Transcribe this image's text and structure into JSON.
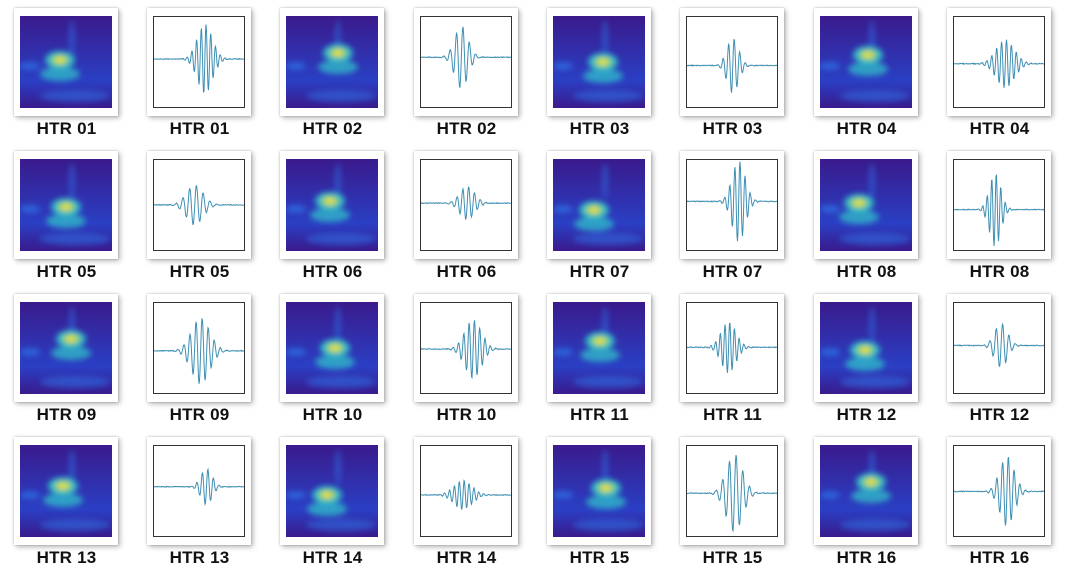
{
  "colors": {
    "background": "#ffffff",
    "waveform_line": "#3f8fb3",
    "plot_frame": "#333333",
    "scalogram_colormap": [
      "#3a1a8c",
      "#2a3fc4",
      "#2f7ff0",
      "#2fb8c8",
      "#8fd06a",
      "#f0e02a"
    ]
  },
  "panels": [
    {
      "label": "HTR 01",
      "kind": "scalogram",
      "sample": 1
    },
    {
      "label": "HTR 01",
      "kind": "waveform",
      "sample": 1
    },
    {
      "label": "HTR 02",
      "kind": "scalogram",
      "sample": 2
    },
    {
      "label": "HTR 02",
      "kind": "waveform",
      "sample": 2
    },
    {
      "label": "HTR 03",
      "kind": "scalogram",
      "sample": 3
    },
    {
      "label": "HTR 03",
      "kind": "waveform",
      "sample": 3
    },
    {
      "label": "HTR 04",
      "kind": "scalogram",
      "sample": 4
    },
    {
      "label": "HTR 04",
      "kind": "waveform",
      "sample": 4
    },
    {
      "label": "HTR 05",
      "kind": "scalogram",
      "sample": 5
    },
    {
      "label": "HTR 05",
      "kind": "waveform",
      "sample": 5
    },
    {
      "label": "HTR 06",
      "kind": "scalogram",
      "sample": 6
    },
    {
      "label": "HTR 06",
      "kind": "waveform",
      "sample": 6
    },
    {
      "label": "HTR 07",
      "kind": "scalogram",
      "sample": 7
    },
    {
      "label": "HTR 07",
      "kind": "waveform",
      "sample": 7
    },
    {
      "label": "HTR 08",
      "kind": "scalogram",
      "sample": 8
    },
    {
      "label": "HTR 08",
      "kind": "waveform",
      "sample": 8
    },
    {
      "label": "HTR 09",
      "kind": "scalogram",
      "sample": 9
    },
    {
      "label": "HTR 09",
      "kind": "waveform",
      "sample": 9
    },
    {
      "label": "HTR 10",
      "kind": "scalogram",
      "sample": 10
    },
    {
      "label": "HTR 10",
      "kind": "waveform",
      "sample": 10
    },
    {
      "label": "HTR 11",
      "kind": "scalogram",
      "sample": 11
    },
    {
      "label": "HTR 11",
      "kind": "waveform",
      "sample": 11
    },
    {
      "label": "HTR 12",
      "kind": "scalogram",
      "sample": 12
    },
    {
      "label": "HTR 12",
      "kind": "waveform",
      "sample": 12
    },
    {
      "label": "HTR 13",
      "kind": "scalogram",
      "sample": 13
    },
    {
      "label": "HTR 13",
      "kind": "waveform",
      "sample": 13
    },
    {
      "label": "HTR 14",
      "kind": "scalogram",
      "sample": 14
    },
    {
      "label": "HTR 14",
      "kind": "waveform",
      "sample": 14
    },
    {
      "label": "HTR 15",
      "kind": "scalogram",
      "sample": 15
    },
    {
      "label": "HTR 15",
      "kind": "waveform",
      "sample": 15
    },
    {
      "label": "HTR 16",
      "kind": "scalogram",
      "sample": 16
    },
    {
      "label": "HTR 16",
      "kind": "waveform",
      "sample": 16
    }
  ]
}
